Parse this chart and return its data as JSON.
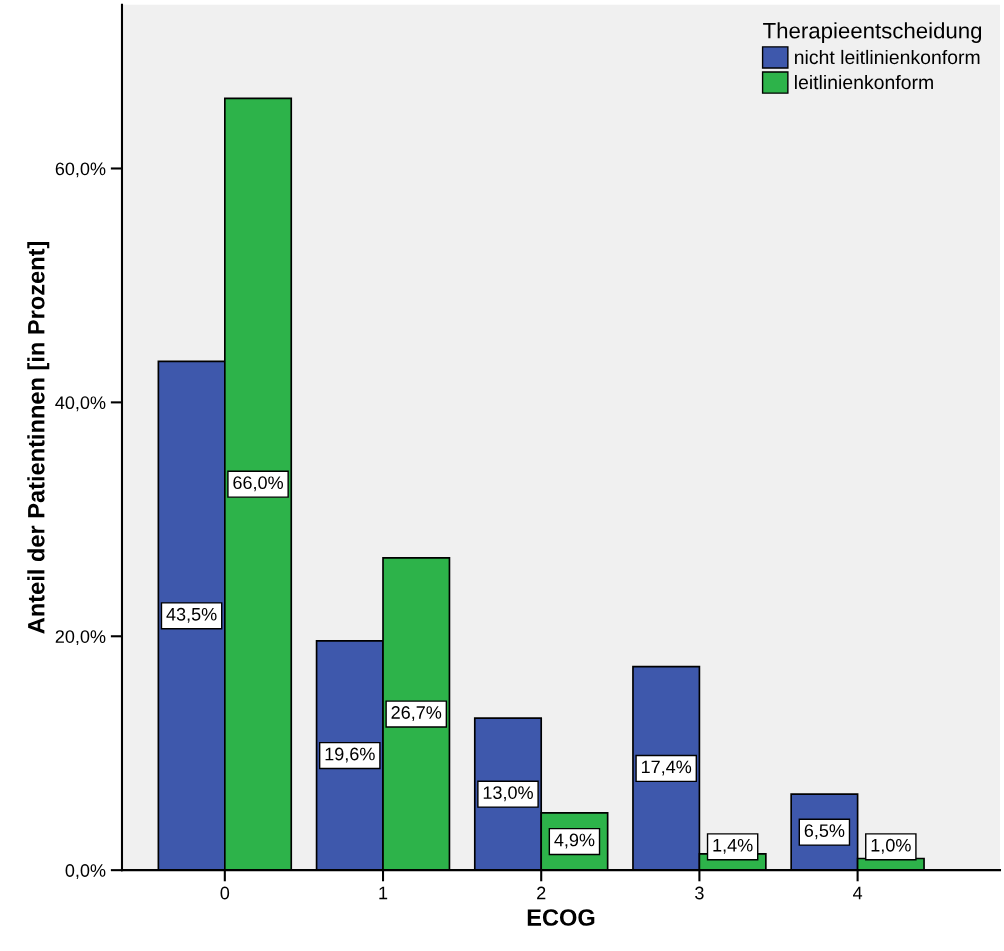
{
  "chart_data": {
    "type": "bar",
    "xlabel": "ECOG",
    "ylabel": "Anteil der Patientinnen [in Prozent]",
    "legend_title": "Therapieentscheidung",
    "legend": "top right",
    "grid": false,
    "categories": [
      "0",
      "1",
      "2",
      "3",
      "4"
    ],
    "series": [
      {
        "name": "nicht leitlinienkonform",
        "color": "#3e58ac",
        "values": [
          43.5,
          19.6,
          13.0,
          17.4,
          6.5
        ],
        "value_labels": [
          "43,5%",
          "19,6%",
          "13,0%",
          "17,4%",
          "6,5%"
        ]
      },
      {
        "name": "leitlinienkonform",
        "color": "#2db34a",
        "values": [
          66.0,
          26.7,
          4.9,
          1.4,
          1.0
        ],
        "value_labels": [
          "66,0%",
          "26,7%",
          "4,9%",
          "1,4%",
          "1,0%"
        ]
      }
    ],
    "ylim": [
      0,
      74
    ],
    "yticks": [
      {
        "value": 0,
        "label": "0,0%"
      },
      {
        "value": 20,
        "label": "20,0%"
      },
      {
        "value": 40,
        "label": "40,0%"
      },
      {
        "value": 60,
        "label": "60,0%"
      }
    ]
  }
}
